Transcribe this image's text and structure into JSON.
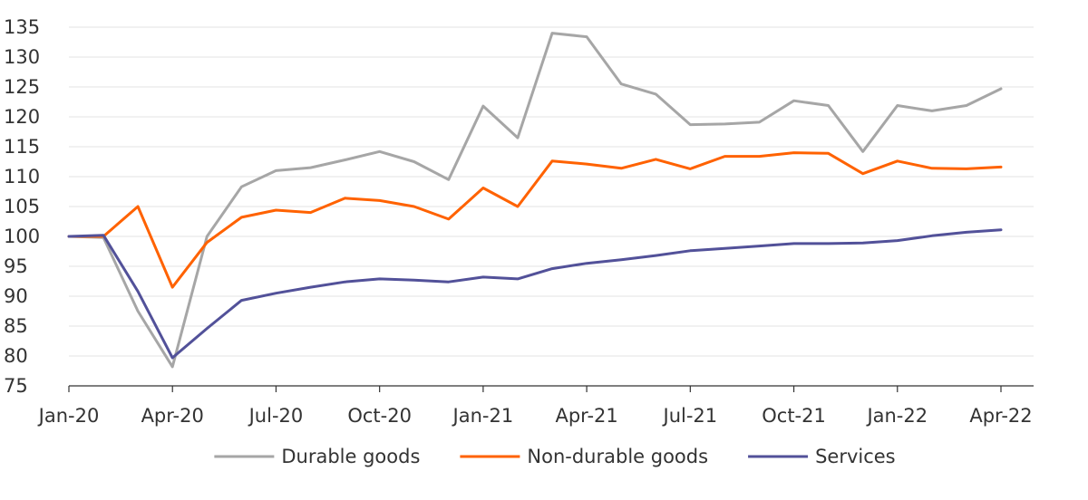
{
  "chart_data": {
    "type": "line",
    "title": "",
    "xlabel": "",
    "ylabel": "",
    "ylim": [
      75,
      135
    ],
    "y_ticks": [
      75,
      80,
      85,
      90,
      95,
      100,
      105,
      110,
      115,
      120,
      125,
      130,
      135
    ],
    "x": [
      "Jan-20",
      "Feb-20",
      "Mar-20",
      "Apr-20",
      "May-20",
      "Jun-20",
      "Jul-20",
      "Aug-20",
      "Sep-20",
      "Oct-20",
      "Nov-20",
      "Dec-20",
      "Jan-21",
      "Feb-21",
      "Mar-21",
      "Apr-21",
      "May-21",
      "Jun-21",
      "Jul-21",
      "Aug-21",
      "Sep-21",
      "Oct-21",
      "Nov-21",
      "Dec-21",
      "Jan-22",
      "Feb-22",
      "Mar-22",
      "Apr-22"
    ],
    "x_tick_labels": [
      "Jan-20",
      "Apr-20",
      "Jul-20",
      "Oct-20",
      "Jan-21",
      "Apr-21",
      "Jul-21",
      "Oct-21",
      "Jan-22",
      "Apr-22"
    ],
    "grid": "horizontal",
    "legend_position": "bottom",
    "series": [
      {
        "name": "Durable goods",
        "color": "#a6a6a6",
        "values": [
          100,
          99.8,
          87.5,
          78.2,
          100,
          108.3,
          111,
          111.5,
          112.8,
          114.2,
          112.5,
          109.5,
          121.8,
          116.5,
          134,
          133.4,
          125.5,
          123.8,
          118.7,
          118.8,
          119.1,
          122.7,
          121.9,
          114.2,
          121.9,
          121,
          121.9,
          124.7
        ]
      },
      {
        "name": "Non-durable goods",
        "color": "#ff6200",
        "values": [
          100,
          100,
          105,
          91.5,
          99,
          103.2,
          104.4,
          104,
          106.4,
          106,
          105,
          102.9,
          108.1,
          105,
          112.6,
          112.1,
          111.4,
          112.9,
          111.3,
          113.4,
          113.4,
          114,
          113.9,
          110.5,
          112.6,
          111.4,
          111.3,
          111.6
        ]
      },
      {
        "name": "Services",
        "color": "#525199",
        "values": [
          100,
          100.2,
          90.8,
          79.7,
          84.6,
          89.3,
          90.5,
          91.5,
          92.4,
          92.9,
          92.7,
          92.4,
          93.2,
          92.9,
          94.6,
          95.5,
          96.1,
          96.8,
          97.6,
          98,
          98.4,
          98.8,
          98.8,
          98.9,
          99.3,
          100.1,
          100.7,
          101.1
        ]
      }
    ]
  }
}
